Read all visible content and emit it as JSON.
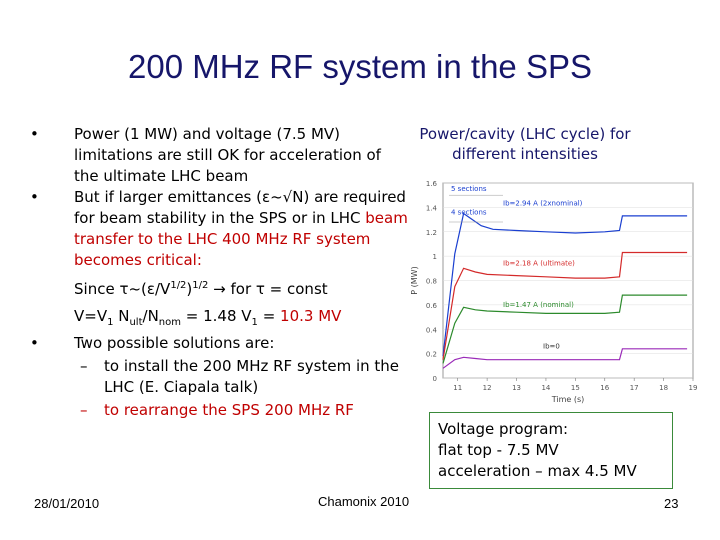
{
  "title": "200 MHz RF system in the SPS",
  "bullets": {
    "b1": "Power (1 MW) and voltage (7.5 MV) limitations are still OK for acceleration of the ultimate LHC beam",
    "b2_black": "But if larger emittances (ε~√N) are required for beam stability in the SPS or in LHC",
    "b2_red": " beam transfer to the LHC 400 MHz RF system becomes critical:",
    "since_a": "Since τ~(ε/V",
    "since_sup1": "1/2",
    "since_b": ")",
    "since_sup2": "1/2",
    "since_c": " → for τ = const",
    "v_a": "V=V",
    "v_sub1": "1",
    "v_b": " N",
    "v_sub2": "ult",
    "v_c": "/N",
    "v_sub3": "nom",
    "v_d": " = 1.48 V",
    "v_sub4": "1",
    "v_e": " = ",
    "v_red": "10.3 MV",
    "b3": "Two possible solutions are:",
    "s1": "to install the 200 MHz RF system in the LHC (E. Ciapala talk)",
    "s2": "to rearrange the SPS 200 MHz RF"
  },
  "caption": "Power/cavity (LHC cycle) for different intensities",
  "voltage_box": [
    "Voltage program:",
    "flat top - 7.5 MV",
    "acceleration – max 4.5 MV"
  ],
  "footer": {
    "date": "28/01/2010",
    "event": "Chamonix 2010",
    "page": "23"
  },
  "chart_data": {
    "type": "line",
    "xlabel": "Time (s)",
    "ylabel": "P (MW)",
    "xlim": [
      10.5,
      19
    ],
    "ylim": [
      0,
      1.6
    ],
    "xticks": [
      "11",
      "12",
      "13",
      "14",
      "15",
      "16",
      "17",
      "18",
      "19"
    ],
    "yticks": [
      "0",
      "0.2",
      "0.4",
      "0.6",
      "0.8",
      "1",
      "1.2",
      "1.4",
      "1.6"
    ],
    "annotations": [
      "5 sections",
      "4 sections",
      "Ib=2.94 A (2xnominal)",
      "Ib=2.18 A (ultimate)",
      "Ib=1.47 A (nominal)",
      "Ib=0"
    ],
    "series": [
      {
        "color": "#1a3fd0",
        "x": [
          10.5,
          10.9,
          11.2,
          11.5,
          11.8,
          12.2,
          13,
          14,
          15,
          16,
          16.5,
          16.6,
          17,
          18,
          18.8
        ],
        "y": [
          0.18,
          1.02,
          1.35,
          1.3,
          1.25,
          1.22,
          1.21,
          1.2,
          1.19,
          1.2,
          1.21,
          1.33,
          1.33,
          1.33,
          1.33
        ]
      },
      {
        "color": "#d42a2a",
        "x": [
          10.5,
          10.9,
          11.2,
          11.6,
          12,
          13,
          14,
          15,
          16,
          16.5,
          16.6,
          17,
          18,
          18.8
        ],
        "y": [
          0.15,
          0.75,
          0.9,
          0.87,
          0.85,
          0.84,
          0.83,
          0.82,
          0.82,
          0.83,
          1.03,
          1.03,
          1.03,
          1.03
        ]
      },
      {
        "color": "#2c8a2c",
        "x": [
          10.5,
          10.9,
          11.2,
          11.6,
          12,
          13,
          14,
          15,
          16,
          16.5,
          16.6,
          17,
          18,
          18.8
        ],
        "y": [
          0.12,
          0.45,
          0.58,
          0.56,
          0.55,
          0.54,
          0.53,
          0.53,
          0.53,
          0.54,
          0.68,
          0.68,
          0.68,
          0.68
        ]
      },
      {
        "color": "#9a2ab8",
        "x": [
          10.5,
          10.9,
          11.2,
          11.6,
          12,
          13,
          14,
          15,
          16,
          16.5,
          16.6,
          17,
          18,
          18.8
        ],
        "y": [
          0.08,
          0.15,
          0.17,
          0.16,
          0.15,
          0.15,
          0.15,
          0.15,
          0.15,
          0.15,
          0.24,
          0.24,
          0.24,
          0.24
        ]
      }
    ]
  }
}
